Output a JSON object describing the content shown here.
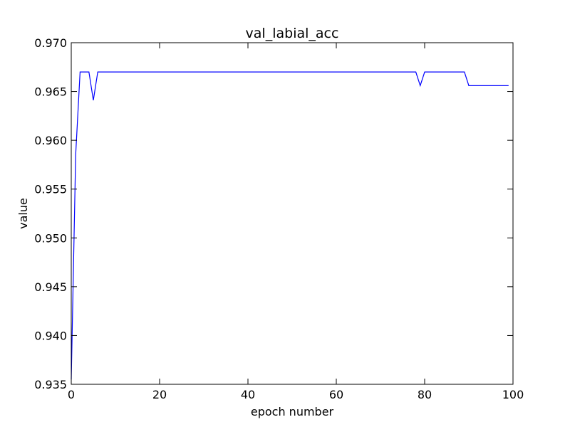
{
  "chart_data": {
    "type": "line",
    "title": "val_labial_acc",
    "xlabel": "epoch number",
    "ylabel": "value",
    "xlim": [
      0,
      100
    ],
    "ylim": [
      0.935,
      0.97
    ],
    "x_ticks": [
      0,
      20,
      40,
      60,
      80,
      100
    ],
    "x_tick_labels": [
      "0",
      "20",
      "40",
      "60",
      "80",
      "100"
    ],
    "y_ticks": [
      0.935,
      0.94,
      0.945,
      0.95,
      0.955,
      0.96,
      0.965,
      0.97
    ],
    "y_tick_labels": [
      "0.935",
      "0.940",
      "0.945",
      "0.950",
      "0.955",
      "0.960",
      "0.965",
      "0.970"
    ],
    "grid": false,
    "colors": {
      "line": "#0000ff",
      "axes": "#000000",
      "background": "#ffffff"
    },
    "series": [
      {
        "x": [
          0,
          1,
          2,
          3,
          4,
          5,
          6,
          7,
          78,
          79,
          80,
          81,
          89,
          90,
          99
        ],
        "y": [
          0.9355,
          0.9585,
          0.967,
          0.967,
          0.967,
          0.9641,
          0.967,
          0.967,
          0.967,
          0.9656,
          0.967,
          0.967,
          0.967,
          0.9656,
          0.9656
        ]
      }
    ]
  }
}
